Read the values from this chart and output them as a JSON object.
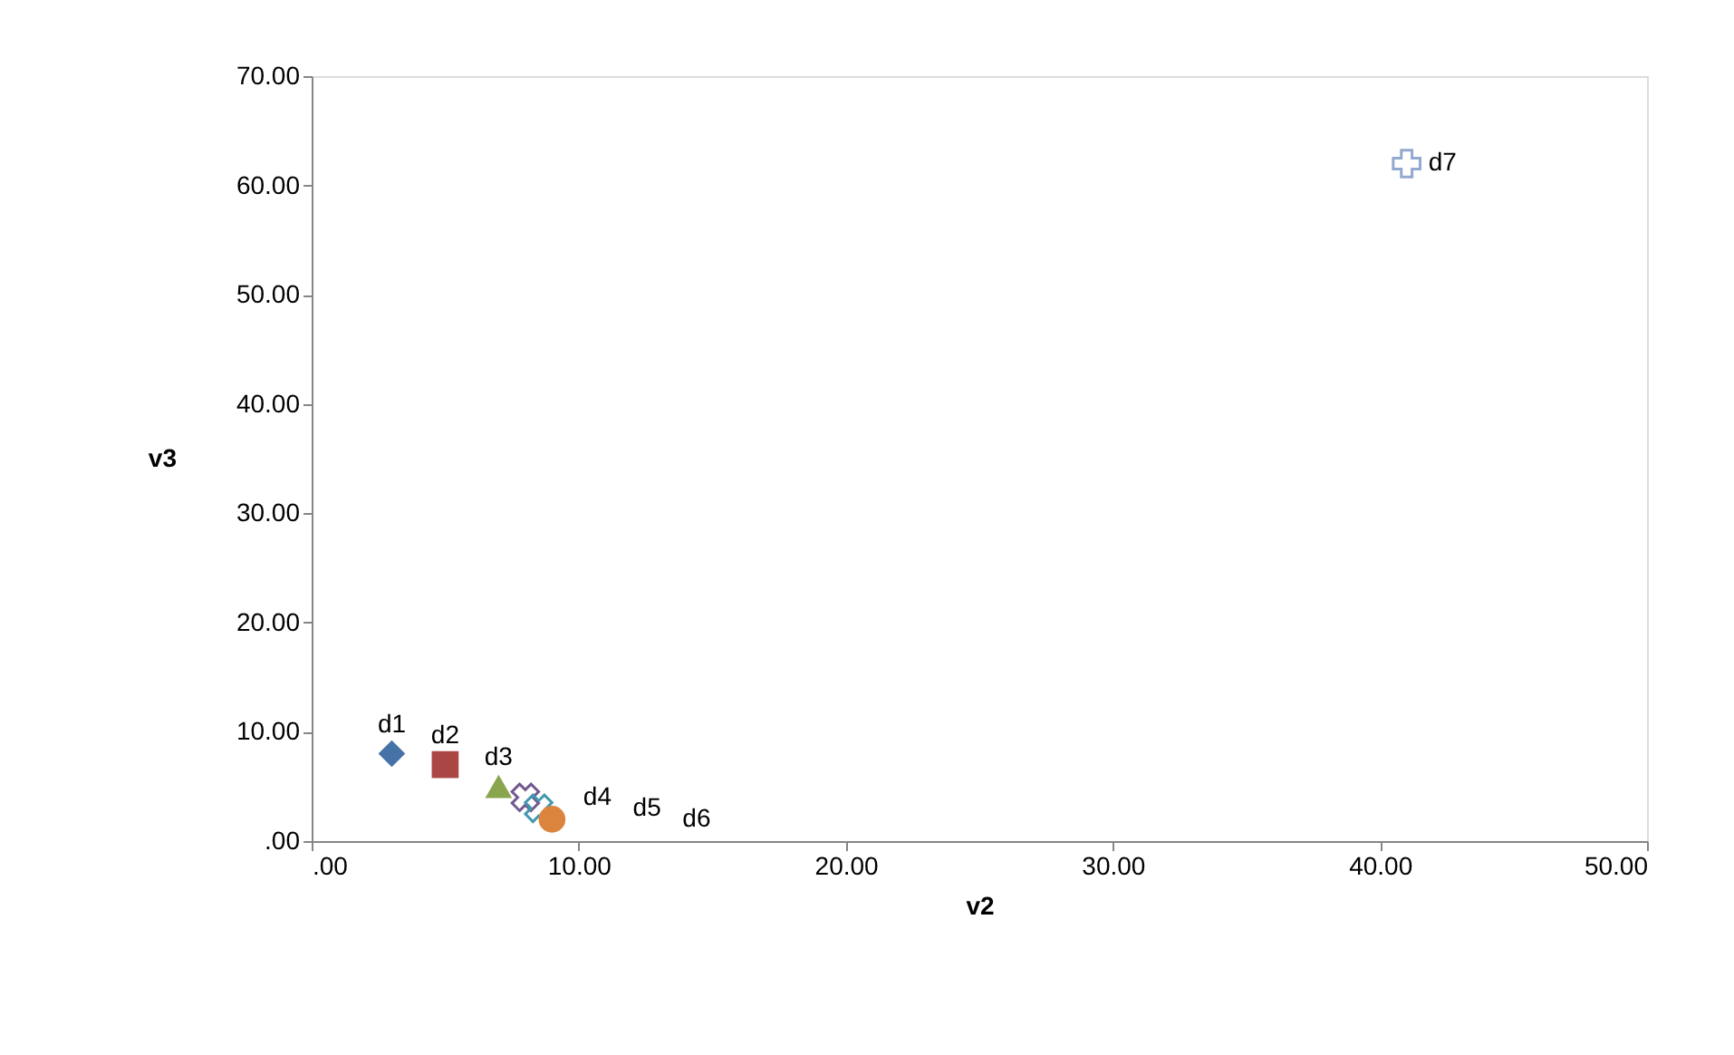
{
  "chart_data": {
    "type": "scatter",
    "xlabel": "v2",
    "ylabel": "v3",
    "xlim": [
      0,
      50
    ],
    "ylim": [
      0,
      70
    ],
    "xticks": [
      {
        "value": 0,
        "label": ".00"
      },
      {
        "value": 10,
        "label": "10.00"
      },
      {
        "value": 20,
        "label": "20.00"
      },
      {
        "value": 30,
        "label": "30.00"
      },
      {
        "value": 40,
        "label": "40.00"
      },
      {
        "value": 50,
        "label": "50.00"
      }
    ],
    "yticks": [
      {
        "value": 0,
        "label": ".00"
      },
      {
        "value": 10,
        "label": "10.00"
      },
      {
        "value": 20,
        "label": "20.00"
      },
      {
        "value": 30,
        "label": "30.00"
      },
      {
        "value": 40,
        "label": "40.00"
      },
      {
        "value": 50,
        "label": "50.00"
      },
      {
        "value": 60,
        "label": "60.00"
      },
      {
        "value": 70,
        "label": "70.00"
      }
    ],
    "grid": false,
    "series": [
      {
        "name": "d1",
        "color": "#4572a7",
        "marker": "diamond",
        "x": [
          3
        ],
        "values": [
          8
        ]
      },
      {
        "name": "d2",
        "color": "#aa4643",
        "marker": "square",
        "x": [
          5
        ],
        "values": [
          7
        ]
      },
      {
        "name": "d3",
        "color": "#89a54e",
        "marker": "triangle",
        "x": [
          7
        ],
        "values": [
          5
        ]
      },
      {
        "name": "d4",
        "color": "#71588f",
        "marker": "cross",
        "x": [
          8
        ],
        "values": [
          4
        ]
      },
      {
        "name": "d5",
        "color": "#4198af",
        "marker": "cross",
        "x": [
          8.5
        ],
        "values": [
          3
        ]
      },
      {
        "name": "d6",
        "color": "#db843d",
        "marker": "circle",
        "x": [
          9
        ],
        "values": [
          2
        ]
      },
      {
        "name": "d7",
        "color": "#93a9cf",
        "marker": "cross",
        "x": [
          41
        ],
        "values": [
          62
        ]
      }
    ]
  }
}
